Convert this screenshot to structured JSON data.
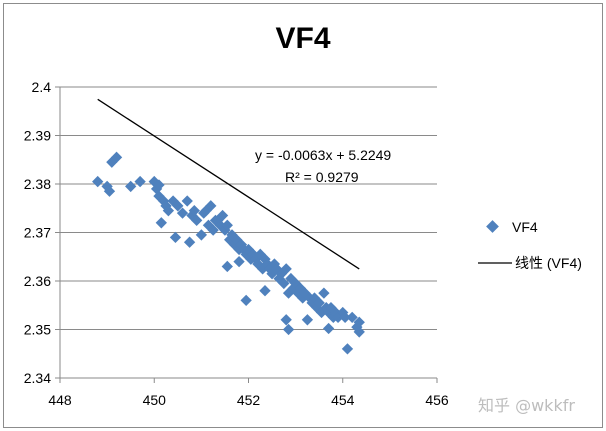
{
  "chart_data": {
    "type": "scatter",
    "title": "VF4",
    "xlim": [
      448,
      456
    ],
    "ylim": [
      2.34,
      2.4
    ],
    "x_ticks": [
      "448",
      "450",
      "452",
      "454",
      "456"
    ],
    "y_ticks": [
      "2.34",
      "2.35",
      "2.36",
      "2.37",
      "2.38",
      "2.39",
      "2.4"
    ],
    "grid": "horizontal",
    "legend_position": "right",
    "series": [
      {
        "name": "VF4",
        "marker": "diamond",
        "color": "#4f81bd",
        "points": [
          [
            448.8,
            2.3805
          ],
          [
            449.0,
            2.3795
          ],
          [
            449.05,
            2.3785
          ],
          [
            449.1,
            2.3845
          ],
          [
            449.2,
            2.3855
          ],
          [
            449.5,
            2.3795
          ],
          [
            449.7,
            2.3805
          ],
          [
            450.0,
            2.3805
          ],
          [
            450.05,
            2.379
          ],
          [
            450.1,
            2.3775
          ],
          [
            450.1,
            2.3798
          ],
          [
            450.15,
            2.372
          ],
          [
            450.2,
            2.3765
          ],
          [
            450.25,
            2.3755
          ],
          [
            450.3,
            2.3745
          ],
          [
            450.4,
            2.3765
          ],
          [
            450.45,
            2.369
          ],
          [
            450.5,
            2.3755
          ],
          [
            450.6,
            2.374
          ],
          [
            450.7,
            2.3765
          ],
          [
            450.75,
            2.368
          ],
          [
            450.8,
            2.3735
          ],
          [
            450.85,
            2.3745
          ],
          [
            450.9,
            2.3725
          ],
          [
            451.0,
            2.3695
          ],
          [
            451.05,
            2.374
          ],
          [
            451.1,
            2.3745
          ],
          [
            451.15,
            2.3715
          ],
          [
            451.2,
            2.3755
          ],
          [
            451.25,
            2.3705
          ],
          [
            451.3,
            2.3725
          ],
          [
            451.35,
            2.3725
          ],
          [
            451.4,
            2.3715
          ],
          [
            451.45,
            2.3735
          ],
          [
            451.5,
            2.3705
          ],
          [
            451.55,
            2.3715
          ],
          [
            451.55,
            2.363
          ],
          [
            451.6,
            2.3685
          ],
          [
            451.65,
            2.3695
          ],
          [
            451.7,
            2.3675
          ],
          [
            451.75,
            2.3685
          ],
          [
            451.8,
            2.3665
          ],
          [
            451.8,
            2.364
          ],
          [
            451.85,
            2.3675
          ],
          [
            451.9,
            2.3665
          ],
          [
            451.95,
            2.3655
          ],
          [
            451.95,
            2.356
          ],
          [
            452.0,
            2.3665
          ],
          [
            452.05,
            2.3645
          ],
          [
            452.1,
            2.3655
          ],
          [
            452.15,
            2.3645
          ],
          [
            452.2,
            2.3635
          ],
          [
            452.25,
            2.3655
          ],
          [
            452.3,
            2.3625
          ],
          [
            452.35,
            2.3645
          ],
          [
            452.35,
            2.358
          ],
          [
            452.4,
            2.3635
          ],
          [
            452.45,
            2.3625
          ],
          [
            452.5,
            2.3615
          ],
          [
            452.55,
            2.3635
          ],
          [
            452.6,
            2.3625
          ],
          [
            452.65,
            2.3605
          ],
          [
            452.7,
            2.3615
          ],
          [
            452.75,
            2.3595
          ],
          [
            452.8,
            2.3625
          ],
          [
            452.8,
            2.352
          ],
          [
            452.85,
            2.3575
          ],
          [
            452.85,
            2.35
          ],
          [
            452.9,
            2.3605
          ],
          [
            452.95,
            2.3585
          ],
          [
            453.0,
            2.3595
          ],
          [
            453.05,
            2.3575
          ],
          [
            453.1,
            2.3585
          ],
          [
            453.15,
            2.3565
          ],
          [
            453.2,
            2.3575
          ],
          [
            453.25,
            2.352
          ],
          [
            453.3,
            2.3565
          ],
          [
            453.35,
            2.3555
          ],
          [
            453.4,
            2.3565
          ],
          [
            453.45,
            2.3545
          ],
          [
            453.5,
            2.3555
          ],
          [
            453.55,
            2.3535
          ],
          [
            453.6,
            2.3575
          ],
          [
            453.65,
            2.3545
          ],
          [
            453.7,
            2.3535
          ],
          [
            453.7,
            2.3502
          ],
          [
            453.75,
            2.3545
          ],
          [
            453.8,
            2.3525
          ],
          [
            453.85,
            2.3535
          ],
          [
            453.9,
            2.3525
          ],
          [
            454.0,
            2.3535
          ],
          [
            454.05,
            2.3525
          ],
          [
            454.1,
            2.346
          ],
          [
            454.2,
            2.3525
          ],
          [
            454.3,
            2.3505
          ],
          [
            454.35,
            2.3515
          ],
          [
            454.35,
            2.3495
          ]
        ]
      }
    ],
    "trendline": {
      "name": "线性 (VF4)",
      "type": "linear",
      "slope": -0.0063,
      "intercept": 5.2249,
      "x_range": [
        448.8,
        454.35
      ],
      "color": "#000000",
      "equation_text": "y = -0.0063x + 5.2249",
      "r2_text": "R² = 0.9279"
    }
  },
  "watermark": "知乎 @wkkfr"
}
